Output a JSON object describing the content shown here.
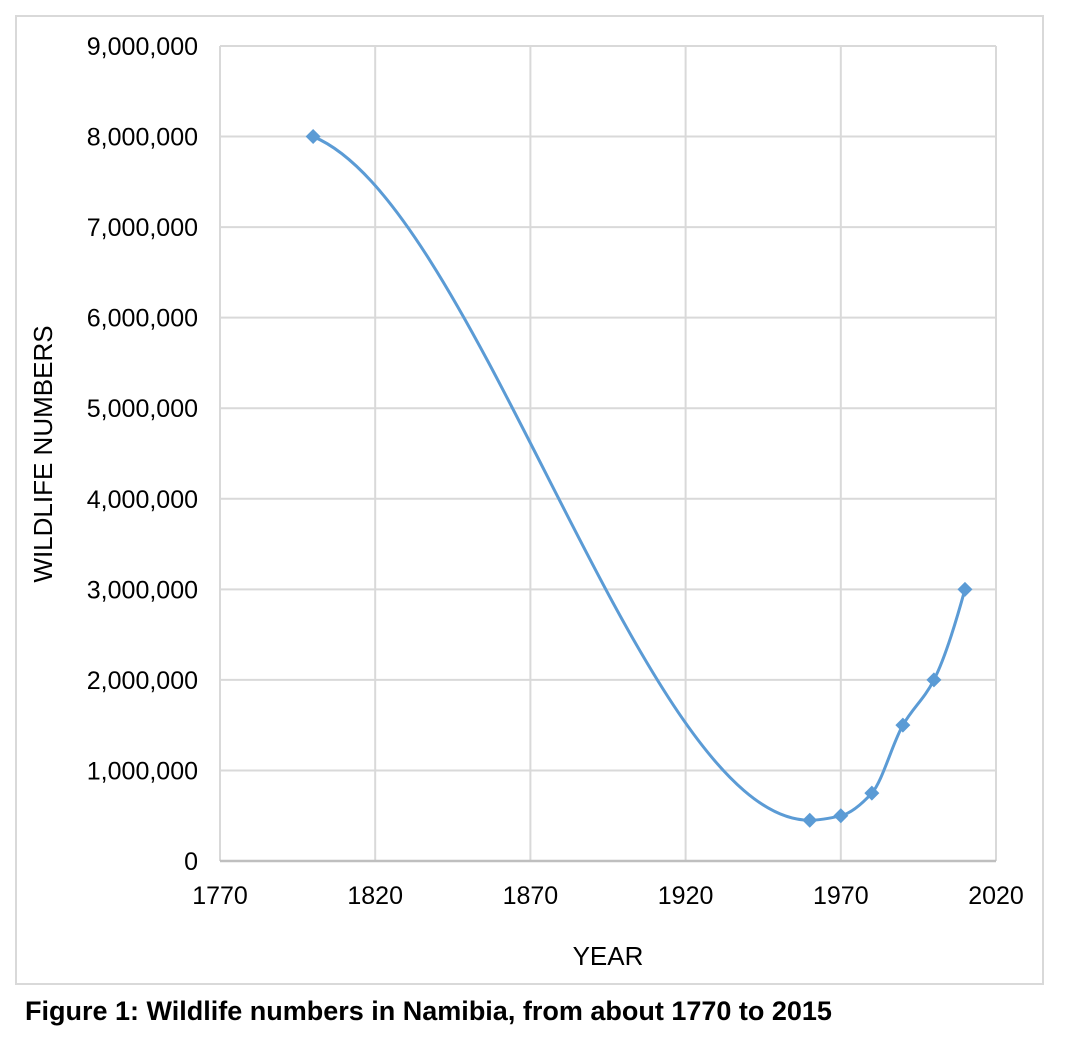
{
  "figure": {
    "caption": "Figure 1: Wildlife numbers in Namibia, from about 1770 to 2015"
  },
  "chart_data": {
    "type": "scatter",
    "subtype": "smooth-line-with-markers",
    "title": "",
    "xlabel": "YEAR",
    "ylabel": "WILDLIFE NUMBERS",
    "xlim": [
      1770,
      2020
    ],
    "ylim": [
      0,
      9000000
    ],
    "x_tick_interval": 50,
    "y_tick_interval": 1000000,
    "x_tick_labels": [
      "1770",
      "1820",
      "1870",
      "1920",
      "1970",
      "2020"
    ],
    "y_tick_labels": [
      "0",
      "1,000,000",
      "2,000,000",
      "3,000,000",
      "4,000,000",
      "5,000,000",
      "6,000,000",
      "7,000,000",
      "8,000,000",
      "9,000,000"
    ],
    "grid": true,
    "legend_position": "none",
    "series": [
      {
        "name": "Wildlife numbers",
        "marker": "diamond",
        "color": "#5B9BD5",
        "points": [
          {
            "year": 1800,
            "value": 8000000
          },
          {
            "year": 1960,
            "value": 450000
          },
          {
            "year": 1970,
            "value": 500000
          },
          {
            "year": 1980,
            "value": 750000
          },
          {
            "year": 1990,
            "value": 1500000
          },
          {
            "year": 2000,
            "value": 2000000
          },
          {
            "year": 2010,
            "value": 3000000
          }
        ]
      }
    ],
    "colors": {
      "series": "#5B9BD5",
      "gridline": "#D9D9D9",
      "axis_line": "#BFBFBF",
      "text": "#000000",
      "frame_border": "#D9D9D9"
    }
  }
}
